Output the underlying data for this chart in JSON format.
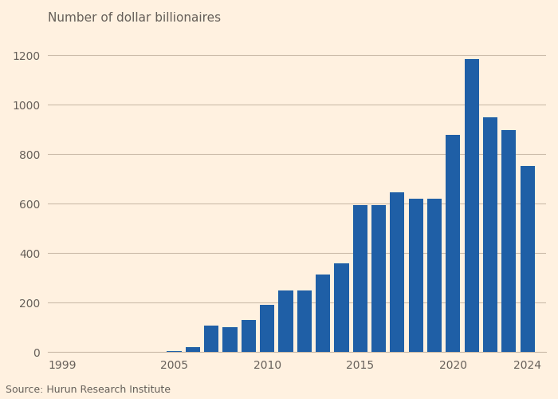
{
  "years": [
    1999,
    2000,
    2001,
    2002,
    2003,
    2004,
    2005,
    2006,
    2007,
    2008,
    2009,
    2010,
    2011,
    2012,
    2013,
    2014,
    2015,
    2016,
    2017,
    2018,
    2019,
    2020,
    2021,
    2022,
    2023,
    2024
  ],
  "values": [
    1,
    1,
    1,
    1,
    2,
    2,
    5,
    20,
    108,
    102,
    130,
    190,
    250,
    250,
    315,
    360,
    595,
    595,
    645,
    620,
    620,
    878,
    1185,
    950,
    898,
    753
  ],
  "bar_color": "#1f5fa6",
  "title": "Number of dollar billionaires",
  "source": "Source: Hurun Research Institute",
  "ylim": [
    0,
    1300
  ],
  "yticks": [
    0,
    200,
    400,
    600,
    800,
    1000,
    1200
  ],
  "xticks": [
    1999,
    2005,
    2010,
    2015,
    2020,
    2024
  ],
  "background_color": "#FFF1E0",
  "plot_bg_color": "#FFF1E0",
  "grid_color": "#ccbcaa",
  "text_color": "#66605a",
  "title_fontsize": 11,
  "source_fontsize": 9,
  "tick_fontsize": 10
}
